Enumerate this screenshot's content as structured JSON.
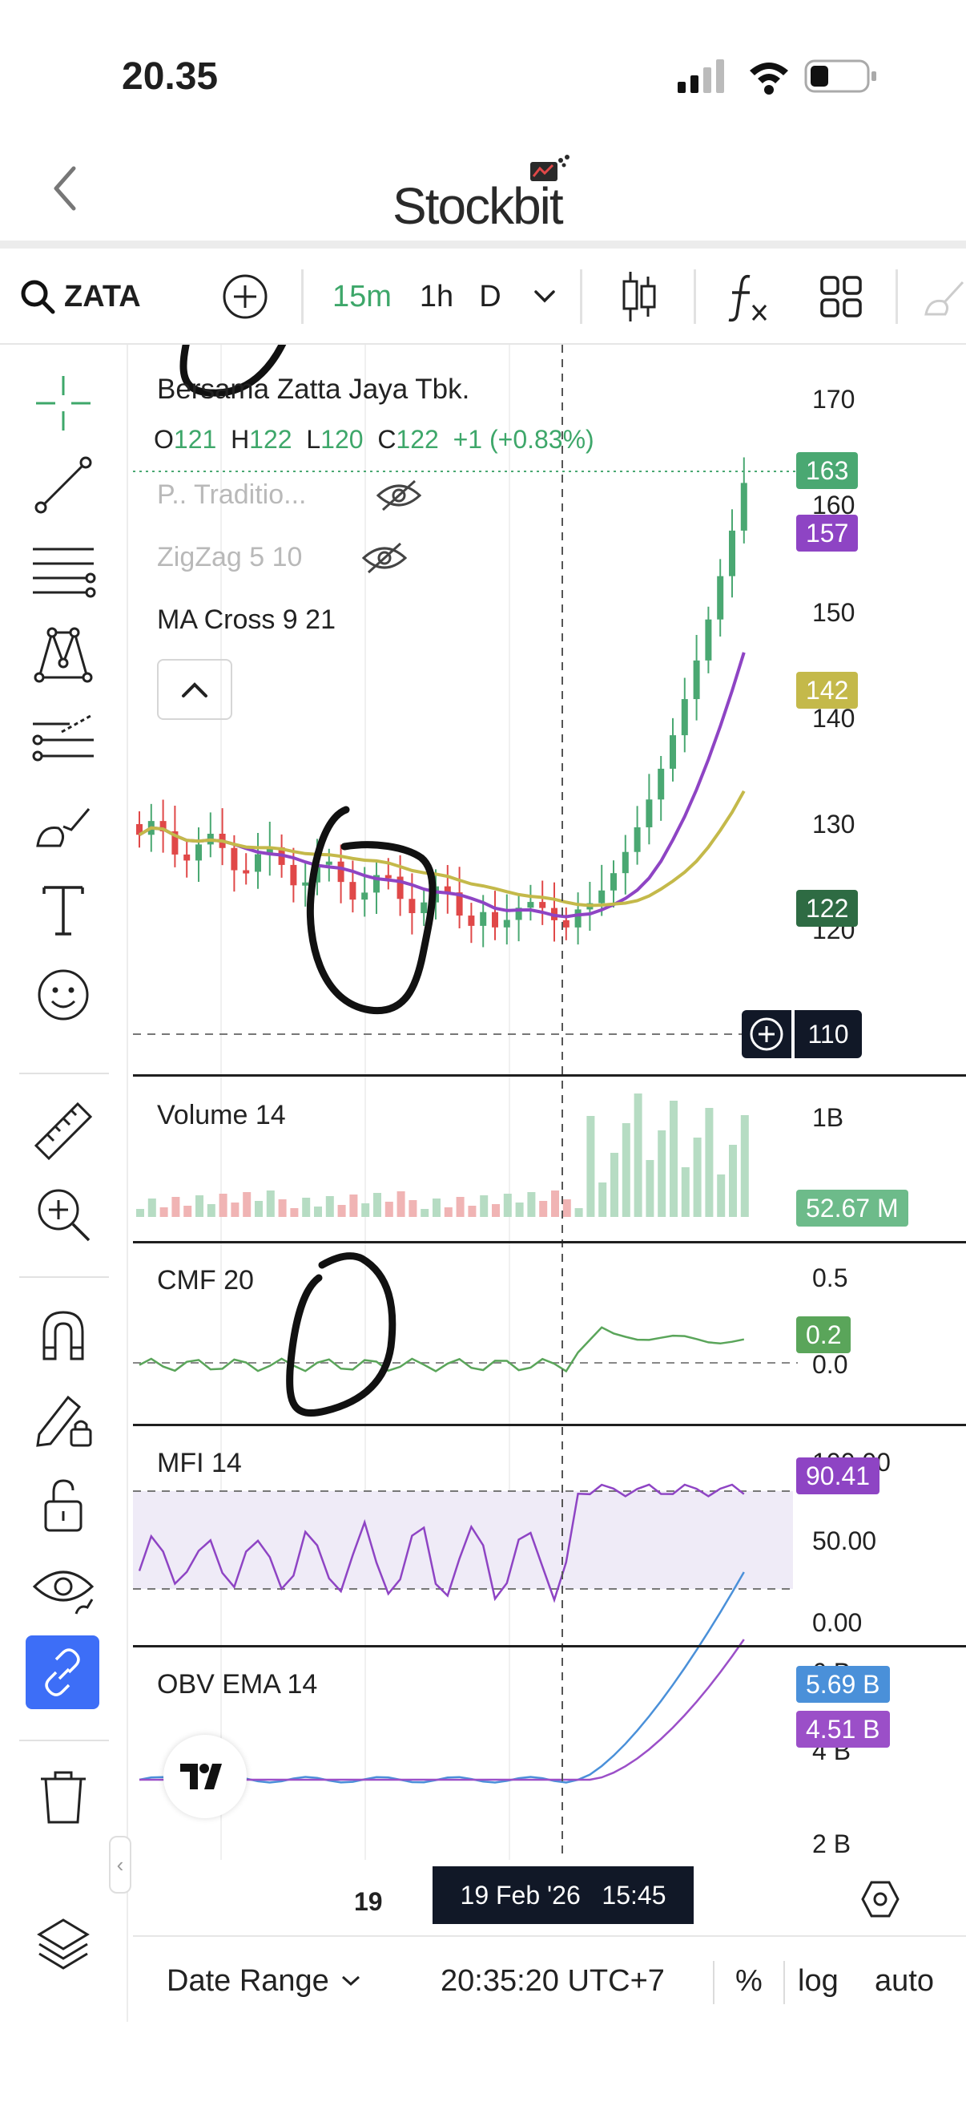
{
  "status_bar": {
    "time": "20.35"
  },
  "header": {
    "logo_text": "Stockbit"
  },
  "toolbar": {
    "symbol": "ZATA",
    "intervals": [
      "15m",
      "1h",
      "D"
    ],
    "selected_interval": "15m"
  },
  "legend": {
    "title": "Bersama Zatta Jaya Tbk.",
    "ohlc": {
      "o_label": "O",
      "o": "121",
      "h_label": "H",
      "h": "122",
      "l_label": "L",
      "l": "120",
      "c_label": "C",
      "c": "122",
      "change": "+1 (+0.83%)"
    },
    "indicators": [
      {
        "label": "P.. Traditio...",
        "hidden": true
      },
      {
        "label": "ZigZag 5 10",
        "hidden": true
      },
      {
        "label": "MA Cross 9 21",
        "hidden": false
      }
    ]
  },
  "price_axis": {
    "ticks": [
      "170",
      "160",
      "150",
      "140",
      "130",
      "120"
    ],
    "badges": [
      {
        "value": "163",
        "color": "#4aa872"
      },
      {
        "value": "157",
        "color": "#8e44c4"
      },
      {
        "value": "142",
        "color": "#c4b94a"
      },
      {
        "value": "122",
        "color": "#2e6b43"
      }
    ],
    "crosshair_price": "110"
  },
  "panes": {
    "volume": {
      "label": "Volume 14",
      "tick": "1B",
      "badge": "52.67 M",
      "badge_color": "#6dbb8a"
    },
    "cmf": {
      "label": "CMF 20",
      "ticks": [
        "0.5",
        "0.0"
      ],
      "badge": "0.2",
      "badge_color": "#5aa55a"
    },
    "mfi": {
      "label": "MFI 14",
      "ticks": [
        "100.00",
        "50.00",
        "0.00"
      ],
      "badge": "90.41",
      "badge_color": "#8e44c4"
    },
    "obv": {
      "label": "OBV EMA 14",
      "ticks": [
        "6 B",
        "4 B",
        "2 B"
      ],
      "badges": [
        {
          "value": "5.69 B",
          "color": "#4a90d9"
        },
        {
          "value": "4.51 B",
          "color": "#9b4fc8"
        }
      ]
    }
  },
  "time_axis": {
    "day_label": "19",
    "cursor_label": "19 Feb '26   15:45"
  },
  "bottom_bar": {
    "date_range": "Date Range",
    "clock": "20:35:20 UTC+7",
    "percent": "%",
    "log": "log",
    "auto": "auto"
  },
  "colors": {
    "up": "#4aa872",
    "down": "#e04848",
    "ma_fast": "#8e44c4",
    "ma_slow": "#c4b94a",
    "accent": "#3ea76a",
    "link_active": "#3d6ef7"
  }
}
